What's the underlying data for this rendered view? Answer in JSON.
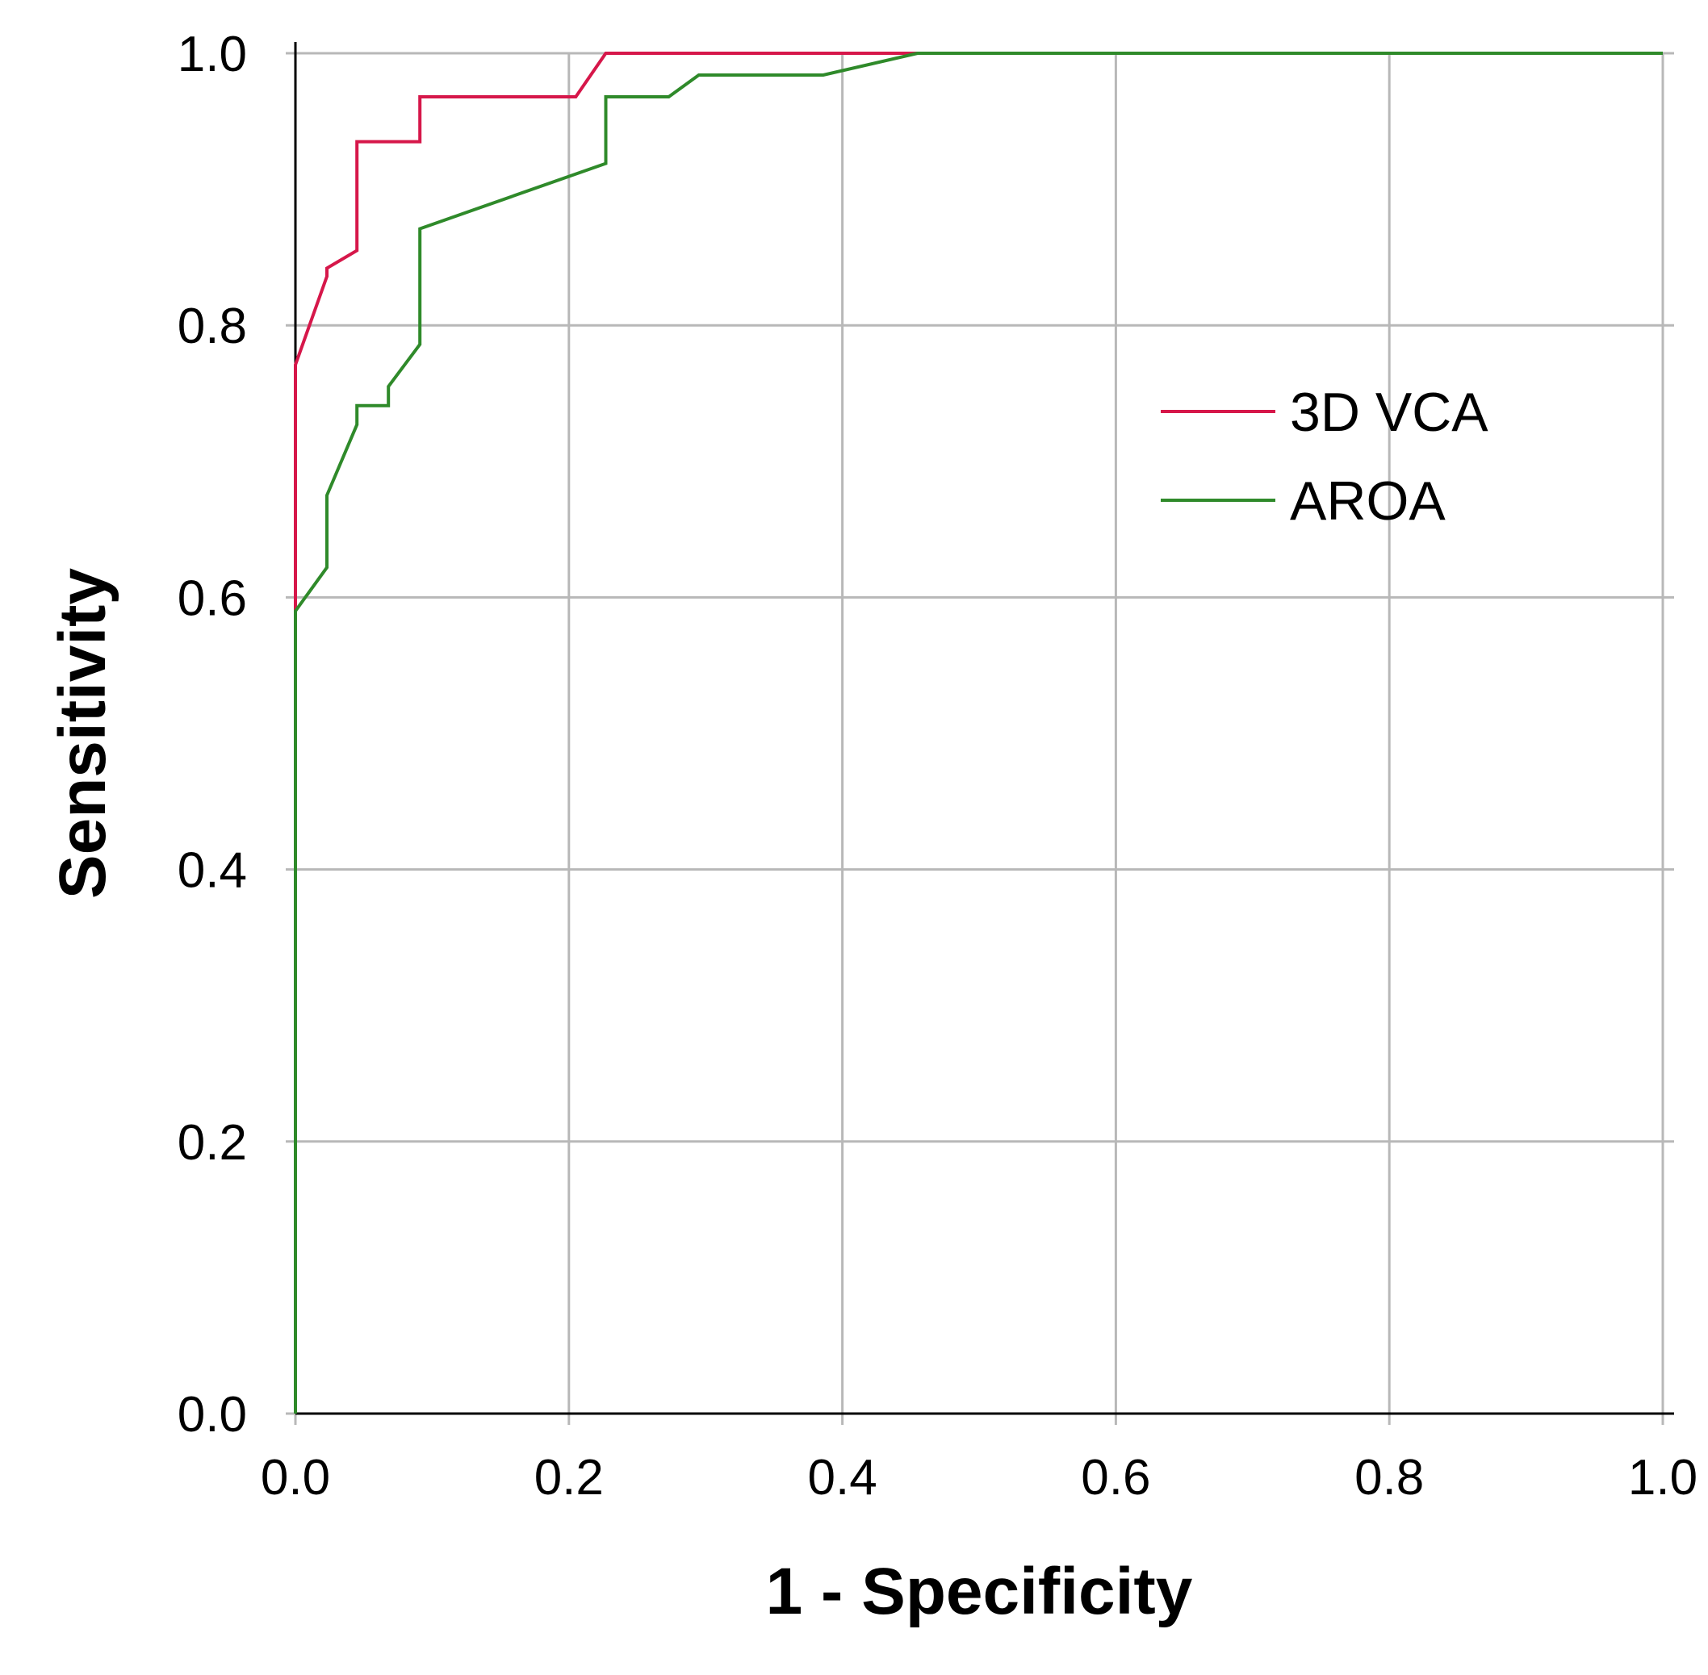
{
  "chart_data": {
    "type": "line",
    "title": "",
    "xlabel": "1 - Specificity",
    "ylabel": "Sensitivity",
    "xlim": [
      0,
      1
    ],
    "ylim": [
      0,
      1
    ],
    "xticks": [
      "0.0",
      "0.2",
      "0.4",
      "0.6",
      "0.8",
      "1.0"
    ],
    "yticks": [
      "0.0",
      "0.2",
      "0.4",
      "0.6",
      "0.8",
      "1.0"
    ],
    "grid": true,
    "legend_position": "top-right",
    "series": [
      {
        "name": "3D VCA",
        "color": "#d6174a",
        "points": [
          [
            0,
            0
          ],
          [
            0,
            0.771
          ],
          [
            0.023,
            0.836
          ],
          [
            0.023,
            0.842
          ],
          [
            0.045,
            0.855
          ],
          [
            0.045,
            0.935
          ],
          [
            0.091,
            0.935
          ],
          [
            0.091,
            0.968
          ],
          [
            0.205,
            0.968
          ],
          [
            0.227,
            1.0
          ],
          [
            1.0,
            1.0
          ]
        ]
      },
      {
        "name": "AROA",
        "color": "#2f8a2a",
        "points": [
          [
            0,
            0
          ],
          [
            0,
            0.59
          ],
          [
            0.023,
            0.622
          ],
          [
            0.023,
            0.675
          ],
          [
            0.045,
            0.727
          ],
          [
            0.045,
            0.741
          ],
          [
            0.068,
            0.741
          ],
          [
            0.068,
            0.755
          ],
          [
            0.091,
            0.786
          ],
          [
            0.091,
            0.871
          ],
          [
            0.227,
            0.919
          ],
          [
            0.227,
            0.968
          ],
          [
            0.273,
            0.968
          ],
          [
            0.295,
            0.984
          ],
          [
            0.386,
            0.984
          ],
          [
            0.455,
            1.0
          ],
          [
            1.0,
            1.0
          ]
        ]
      }
    ]
  }
}
